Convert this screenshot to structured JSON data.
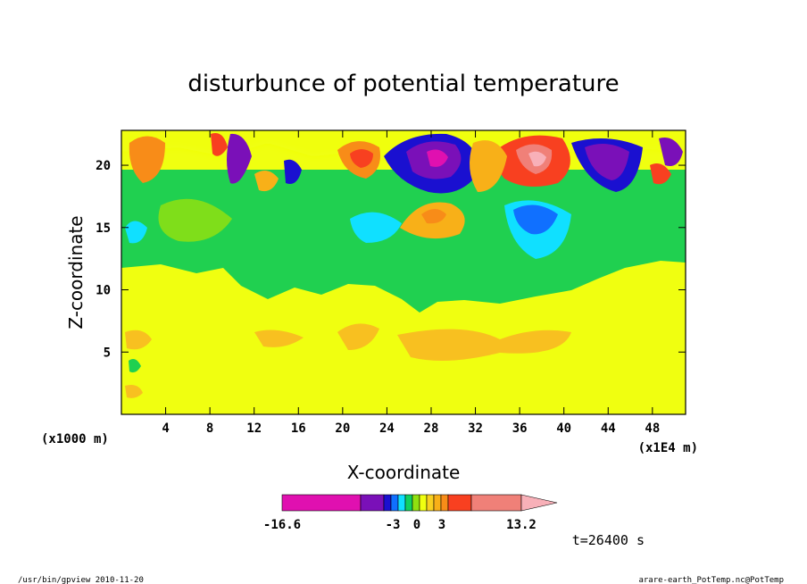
{
  "chart_data": {
    "type": "heatmap",
    "title": "disturbunce of potential temperature",
    "xlabel": "X-coordinate",
    "ylabel": "Z-coordinate",
    "x_unit": "(x1000 m)",
    "x_multiplier": "(x1E4 m)",
    "x_ticks": [
      "4",
      "8",
      "12",
      "16",
      "20",
      "24",
      "28",
      "32",
      "36",
      "40",
      "44",
      "48"
    ],
    "x_tick_values": [
      4,
      8,
      12,
      16,
      20,
      24,
      28,
      32,
      36,
      40,
      44,
      48
    ],
    "y_ticks": [
      "5",
      "10",
      "15",
      "20"
    ],
    "y_tick_values": [
      5,
      10,
      15,
      20
    ],
    "xlim": [
      0,
      51
    ],
    "ylim": [
      0,
      22.8
    ],
    "colorbar": {
      "tick_labels": [
        "-16.6",
        "-3",
        "0",
        "3",
        "13.2"
      ],
      "tick_values": [
        -16.6,
        -3,
        0,
        3,
        13.2
      ],
      "range": [
        -16.6,
        13.2
      ],
      "colors": [
        "#e010b0",
        "#7a10b8",
        "#1a10d0",
        "#1070ff",
        "#10e0ff",
        "#10d060",
        "#90e010",
        "#f0ff10",
        "#f8d020",
        "#f8b018",
        "#f88c18",
        "#f84020",
        "#f08078",
        "#f8b0b8"
      ],
      "extends_right": true
    },
    "regions": [
      {
        "level": "positive-1",
        "color": "#f8c020",
        "x": [
          1,
          4
        ],
        "z": [
          1.5,
          3
        ]
      },
      {
        "level": "positive-1",
        "color": "#f8c020",
        "x": [
          12,
          16
        ],
        "z": [
          4.5,
          6
        ]
      },
      {
        "level": "positive-1",
        "color": "#f8c020",
        "x": [
          20,
          24
        ],
        "z": [
          5,
          7.5
        ]
      },
      {
        "level": "positive-1",
        "color": "#f8c020",
        "x": [
          25,
          42
        ],
        "z": [
          4,
          7.5
        ]
      },
      {
        "level": "negative-1",
        "color": "#20d050",
        "x": [
          0,
          51
        ],
        "z": [
          10,
          15
        ]
      },
      {
        "level": "negative-2",
        "color": "#10e0ff",
        "x": [
          21,
          25
        ],
        "z": [
          14.5,
          16.5
        ]
      },
      {
        "level": "negative-2",
        "color": "#10e0ff",
        "x": [
          35,
          40
        ],
        "z": [
          13,
          17
        ]
      },
      {
        "level": "negative-3",
        "color": "#1a10d0",
        "x": [
          26,
          32
        ],
        "z": [
          18,
          22
        ]
      },
      {
        "level": "negative-4",
        "color": "#7a10b8",
        "x": [
          27,
          30
        ],
        "z": [
          19,
          21.5
        ]
      },
      {
        "level": "negative-4",
        "color": "#7a10b8",
        "x": [
          41,
          47
        ],
        "z": [
          18,
          22
        ]
      },
      {
        "level": "positive-3",
        "color": "#f84020",
        "x": [
          34,
          40
        ],
        "z": [
          18,
          22.5
        ]
      },
      {
        "level": "positive-4",
        "color": "#f08078",
        "x": [
          36,
          39
        ],
        "z": [
          19,
          21.5
        ]
      },
      {
        "level": "positive-2",
        "color": "#f88c18",
        "x": [
          19,
          23
        ],
        "z": [
          19,
          21.5
        ]
      },
      {
        "level": "positive-2",
        "color": "#f88c18",
        "x": [
          26,
          29
        ],
        "z": [
          15.5,
          17.5
        ]
      },
      {
        "level": "positive-2",
        "color": "#f88c18",
        "x": [
          0,
          4
        ],
        "z": [
          18,
          21
        ]
      }
    ],
    "time_label": "t=26400 s"
  },
  "footer": {
    "left": "/usr/bin/gpview   2010-11-20",
    "right": "arare-earth_PotTemp.nc@PotTemp"
  }
}
